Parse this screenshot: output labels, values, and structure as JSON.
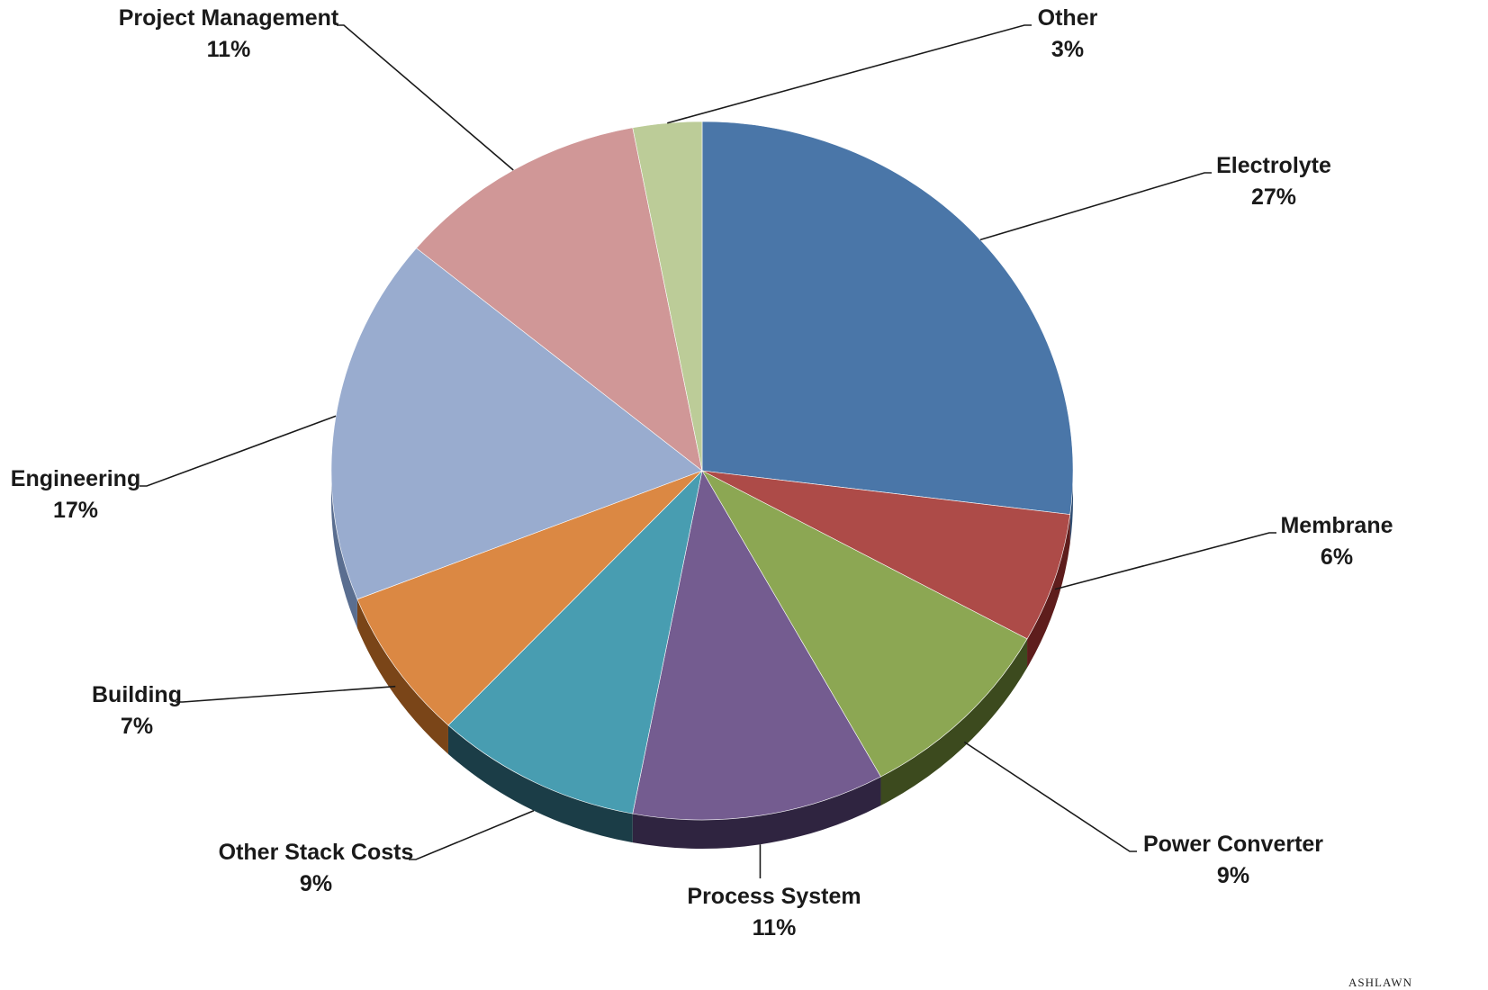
{
  "chart_data": {
    "type": "pie",
    "three_d": true,
    "start_angle_deg": 0,
    "direction": "clockwise",
    "slices": [
      {
        "label": "Electrolyte",
        "value": 27,
        "display": "27%",
        "color": "#4a76a8",
        "side": "#2e4d72"
      },
      {
        "label": "Membrane",
        "value": 6,
        "display": "6%",
        "color": "#ad4b48",
        "side": "#5e1d1c"
      },
      {
        "label": "Power Converter",
        "value": 9,
        "display": "9%",
        "color": "#8ca753",
        "side": "#3c4a1e"
      },
      {
        "label": "Process System",
        "value": 11,
        "display": "11%",
        "color": "#745c90",
        "side": "#2f2440"
      },
      {
        "label": "Other Stack Costs",
        "value": 9,
        "display": "9%",
        "color": "#489db1",
        "side": "#1b3d47"
      },
      {
        "label": "Building",
        "value": 7,
        "display": "7%",
        "color": "#db8843",
        "side": "#7a4518"
      },
      {
        "label": "Engineering",
        "value": 17,
        "display": "17%",
        "color": "#99accf",
        "side": "#5a6e90"
      },
      {
        "label": "Project Management",
        "value": 11,
        "display": "11%",
        "color": "#d09797",
        "side": "#8d5a5a"
      },
      {
        "label": "Other",
        "value": 3,
        "display": "3%",
        "color": "#bccc98",
        "side": "#7b8a5a"
      }
    ]
  },
  "logo": {
    "text": "ASHLAWN"
  }
}
